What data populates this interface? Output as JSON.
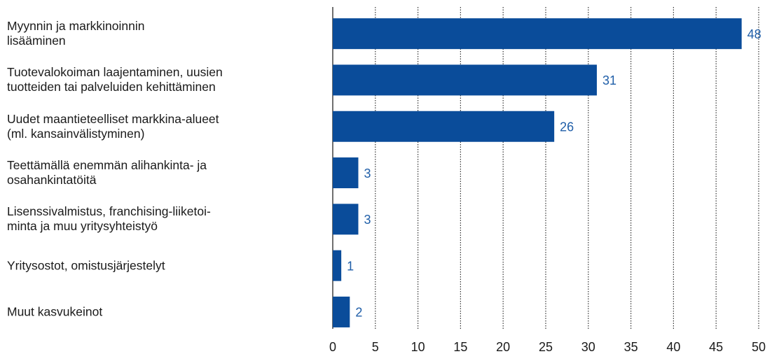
{
  "chart_data": {
    "type": "bar",
    "orientation": "horizontal",
    "categories": [
      "Myynnin ja markkinoinnin\nlisääminen",
      "Tuotevalokoiman laajentaminen, uusien\ntuotteiden tai palveluiden kehittäminen",
      "Uudet maantieteelliset markkina-alueet\n(ml. kansainvälistyminen)",
      "Teettämällä enemmän alihankinta- ja\nosahankintatöitä",
      "Lisenssivalmistus, franchising-liiketoi-\nminta ja muu yritysyhteistyö",
      "Yritysostot, omistusjärjestelyt",
      "Muut kasvukeinot"
    ],
    "values": [
      48,
      31,
      26,
      3,
      3,
      1,
      2
    ],
    "color": "#0a4c9a",
    "label_color": "#1f5ea8",
    "xlim": [
      0,
      50
    ],
    "xticks": [
      0,
      5,
      10,
      15,
      20,
      25,
      30,
      35,
      40,
      45,
      50
    ],
    "grid": true
  }
}
